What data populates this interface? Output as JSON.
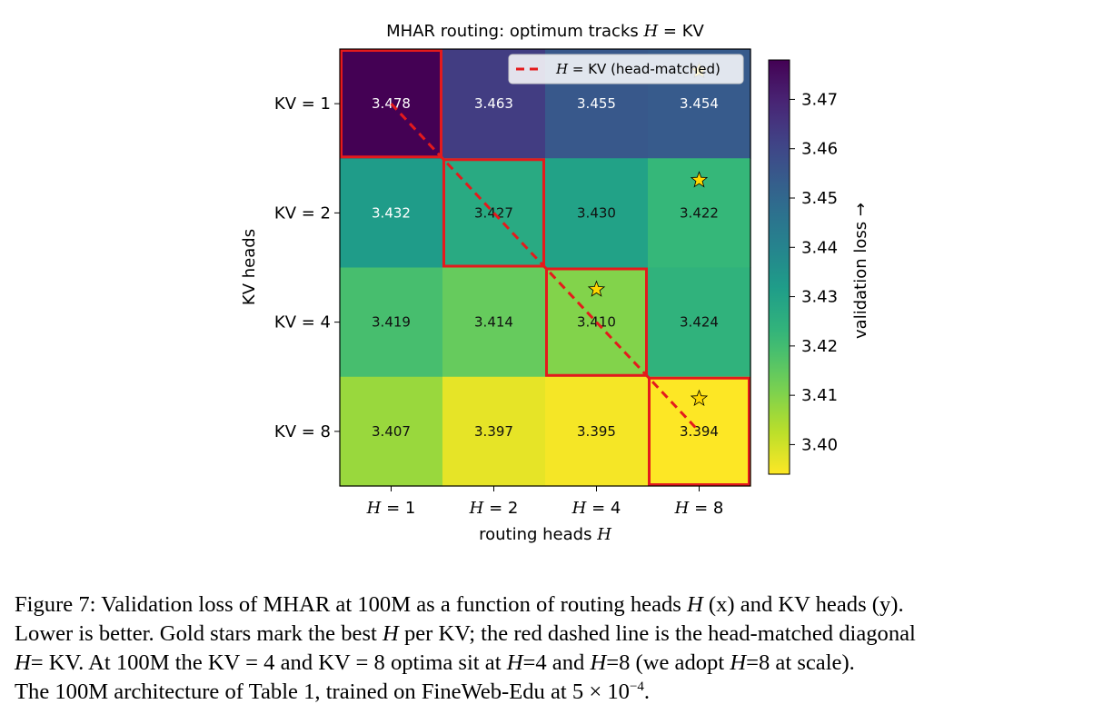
{
  "chart_data": {
    "type": "heatmap",
    "title": {
      "prefix": "MHAR routing: optimum tracks ",
      "var": "H",
      "eq": " =  ",
      "suffix": "KV"
    },
    "xlabel": {
      "text": "routing heads ",
      "var": "H"
    },
    "ylabel": "KV heads",
    "x_categories": [
      {
        "var": "H",
        "value": "1"
      },
      {
        "var": "H",
        "value": "2"
      },
      {
        "var": "H",
        "value": "4"
      },
      {
        "var": "H",
        "value": "8"
      }
    ],
    "y_categories": [
      "KV = 1",
      "KV = 2",
      "KV = 4",
      "KV = 8"
    ],
    "values": [
      [
        3.478,
        3.463,
        3.455,
        3.454
      ],
      [
        3.432,
        3.427,
        3.43,
        3.422
      ],
      [
        3.419,
        3.414,
        3.41,
        3.424
      ],
      [
        3.407,
        3.397,
        3.395,
        3.394
      ]
    ],
    "value_labels": [
      [
        "3.478",
        "3.463",
        "3.455",
        "3.454"
      ],
      [
        "3.432",
        "3.427",
        "3.430",
        "3.422"
      ],
      [
        "3.419",
        "3.414",
        "3.410",
        "3.424"
      ],
      [
        "3.407",
        "3.397",
        "3.395",
        "3.394"
      ]
    ],
    "colorbar": {
      "label": "validation loss →",
      "range": [
        3.394,
        3.478
      ],
      "ticks": [
        "3.40",
        "3.41",
        "3.42",
        "3.43",
        "3.44",
        "3.45",
        "3.46",
        "3.47"
      ],
      "tick_values": [
        3.4,
        3.41,
        3.42,
        3.43,
        3.44,
        3.45,
        3.46,
        3.47
      ],
      "colormap": "viridis_r"
    },
    "highlight_cells": [
      [
        0,
        0
      ],
      [
        1,
        1
      ],
      [
        2,
        2
      ],
      [
        3,
        3
      ]
    ],
    "highlight_color": "#e41a1c",
    "best_markers": [
      {
        "row": 0,
        "col": 3
      },
      {
        "row": 1,
        "col": 3
      },
      {
        "row": 2,
        "col": 2
      },
      {
        "row": 3,
        "col": 3
      }
    ],
    "star_color": "#ffd700",
    "diagonal_color": "#e41a1c",
    "legend": {
      "var": "H",
      "eq": " =  ",
      "text": "KV (head-matched)",
      "position": "upper right"
    }
  },
  "caption": {
    "lines": [
      [
        {
          "t": "Figure 7: Validation loss of MHAR at 100M as a function of routing heads "
        },
        {
          "t": "H",
          "i": true
        },
        {
          "t": " (x) and KV heads (y)."
        }
      ],
      [
        {
          "t": "Lower is better. Gold stars mark the best "
        },
        {
          "t": "H",
          "i": true
        },
        {
          "t": " per KV; the red dashed line is the head-matched diagonal"
        }
      ],
      [
        {
          "t": "H",
          "i": true
        },
        {
          "t": "= KV. At 100M the KV = 4 and KV = 8 optima sit at "
        },
        {
          "t": "H",
          "i": true
        },
        {
          "t": "=4 and "
        },
        {
          "t": "H",
          "i": true
        },
        {
          "t": "=8 (we adopt "
        },
        {
          "t": "H",
          "i": true
        },
        {
          "t": "=8 at scale)."
        }
      ],
      [
        {
          "t": "The 100M architecture of Table 1, trained on FineWeb-Edu at 5 × 10"
        },
        {
          "t": "−4",
          "sup": true
        },
        {
          "t": "."
        }
      ]
    ]
  }
}
